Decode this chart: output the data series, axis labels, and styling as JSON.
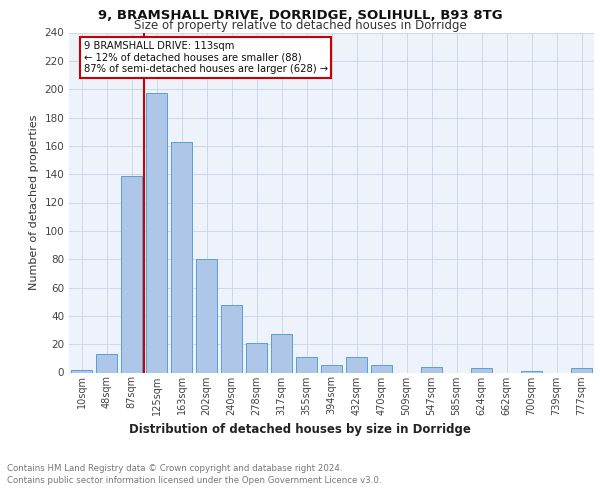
{
  "title1": "9, BRAMSHALL DRIVE, DORRIDGE, SOLIHULL, B93 8TG",
  "title2": "Size of property relative to detached houses in Dorridge",
  "xlabel": "Distribution of detached houses by size in Dorridge",
  "ylabel": "Number of detached properties",
  "categories": [
    "10sqm",
    "48sqm",
    "87sqm",
    "125sqm",
    "163sqm",
    "202sqm",
    "240sqm",
    "278sqm",
    "317sqm",
    "355sqm",
    "394sqm",
    "432sqm",
    "470sqm",
    "509sqm",
    "547sqm",
    "585sqm",
    "624sqm",
    "662sqm",
    "700sqm",
    "739sqm",
    "777sqm"
  ],
  "values": [
    2,
    13,
    139,
    197,
    163,
    80,
    48,
    21,
    27,
    11,
    5,
    11,
    5,
    0,
    4,
    0,
    3,
    0,
    1,
    0,
    3
  ],
  "bar_color": "#aec6e8",
  "bar_edge_color": "#5a9fd4",
  "vline_color": "#cc0000",
  "annotation_text": "9 BRAMSHALL DRIVE: 113sqm\n← 12% of detached houses are smaller (88)\n87% of semi-detached houses are larger (628) →",
  "annotation_box_color": "#cc0000",
  "annotation_box_fill": "#ffffff",
  "ylim": [
    0,
    240
  ],
  "yticks": [
    0,
    20,
    40,
    60,
    80,
    100,
    120,
    140,
    160,
    180,
    200,
    220,
    240
  ],
  "footer_line1": "Contains HM Land Registry data © Crown copyright and database right 2024.",
  "footer_line2": "Contains public sector information licensed under the Open Government Licence v3.0.",
  "bg_color": "#eef2fa"
}
